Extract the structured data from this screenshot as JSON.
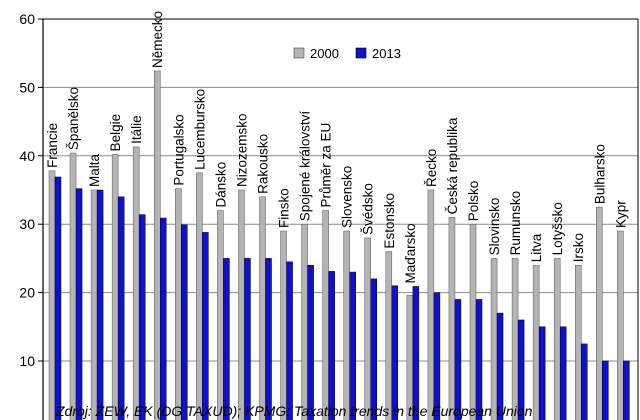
{
  "chart_data": {
    "type": "bar",
    "title": "",
    "xlabel": "",
    "ylabel": "",
    "ylim": [
      0,
      60
    ],
    "yticks": [
      "10",
      "20",
      "30",
      "40",
      "50",
      "60"
    ],
    "grid": true,
    "legend_position": "top-right",
    "categories": [
      "Francie",
      "Španělsko",
      "Malta",
      "Belgie",
      "Itálie",
      "Německo",
      "Portugalsko",
      "Lucembursko",
      "Dánsko",
      "Nizozemsko",
      "Rakousko",
      "Finsko",
      "Spojené království",
      "Průměr za EU",
      "Slovensko",
      "Švédsko",
      "Estonsko",
      "Maďarsko",
      "Řecko",
      "Česká republika",
      "Polsko",
      "Slovinsko",
      "Rumunsko",
      "Litva",
      "Lotyšsko",
      "Irsko",
      "Bulharsko",
      "Kypr"
    ],
    "series": [
      {
        "name": "2000",
        "color": "#b4b4b4",
        "values": [
          37.8,
          40.4,
          35.0,
          40.2,
          41.3,
          52.4,
          35.2,
          37.5,
          32.0,
          35.0,
          34.0,
          29.0,
          30.0,
          32.0,
          29.0,
          28.0,
          26.0,
          19.6,
          35.0,
          31.0,
          30.0,
          25.0,
          25.0,
          24.0,
          25.0,
          24.0,
          32.5,
          29.0
        ]
      },
      {
        "name": "2013",
        "color": "#1010d0",
        "values": [
          36.9,
          35.2,
          35.0,
          34.0,
          31.4,
          30.9,
          29.9,
          28.8,
          25.0,
          25.0,
          25.0,
          24.5,
          24.0,
          23.1,
          23.0,
          22.0,
          21.0,
          20.9,
          20.0,
          19.0,
          19.0,
          17.0,
          16.0,
          15.0,
          15.0,
          12.5,
          10.0,
          10.0
        ]
      }
    ],
    "source_note": "Zdroj: ZEW, EK (DG TAXUD); KPMG: Taxation trends in the European Union"
  }
}
